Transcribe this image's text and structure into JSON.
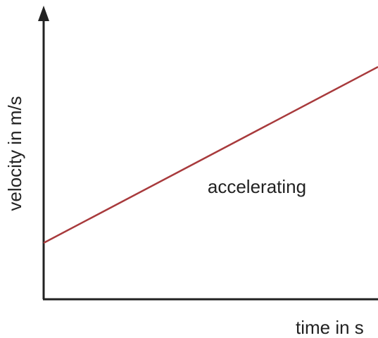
{
  "chart_data": {
    "type": "line",
    "y_label": "velocity in m/s",
    "x_label": "time in s",
    "annotation": "accelerating",
    "color": "#a83a3c"
  }
}
